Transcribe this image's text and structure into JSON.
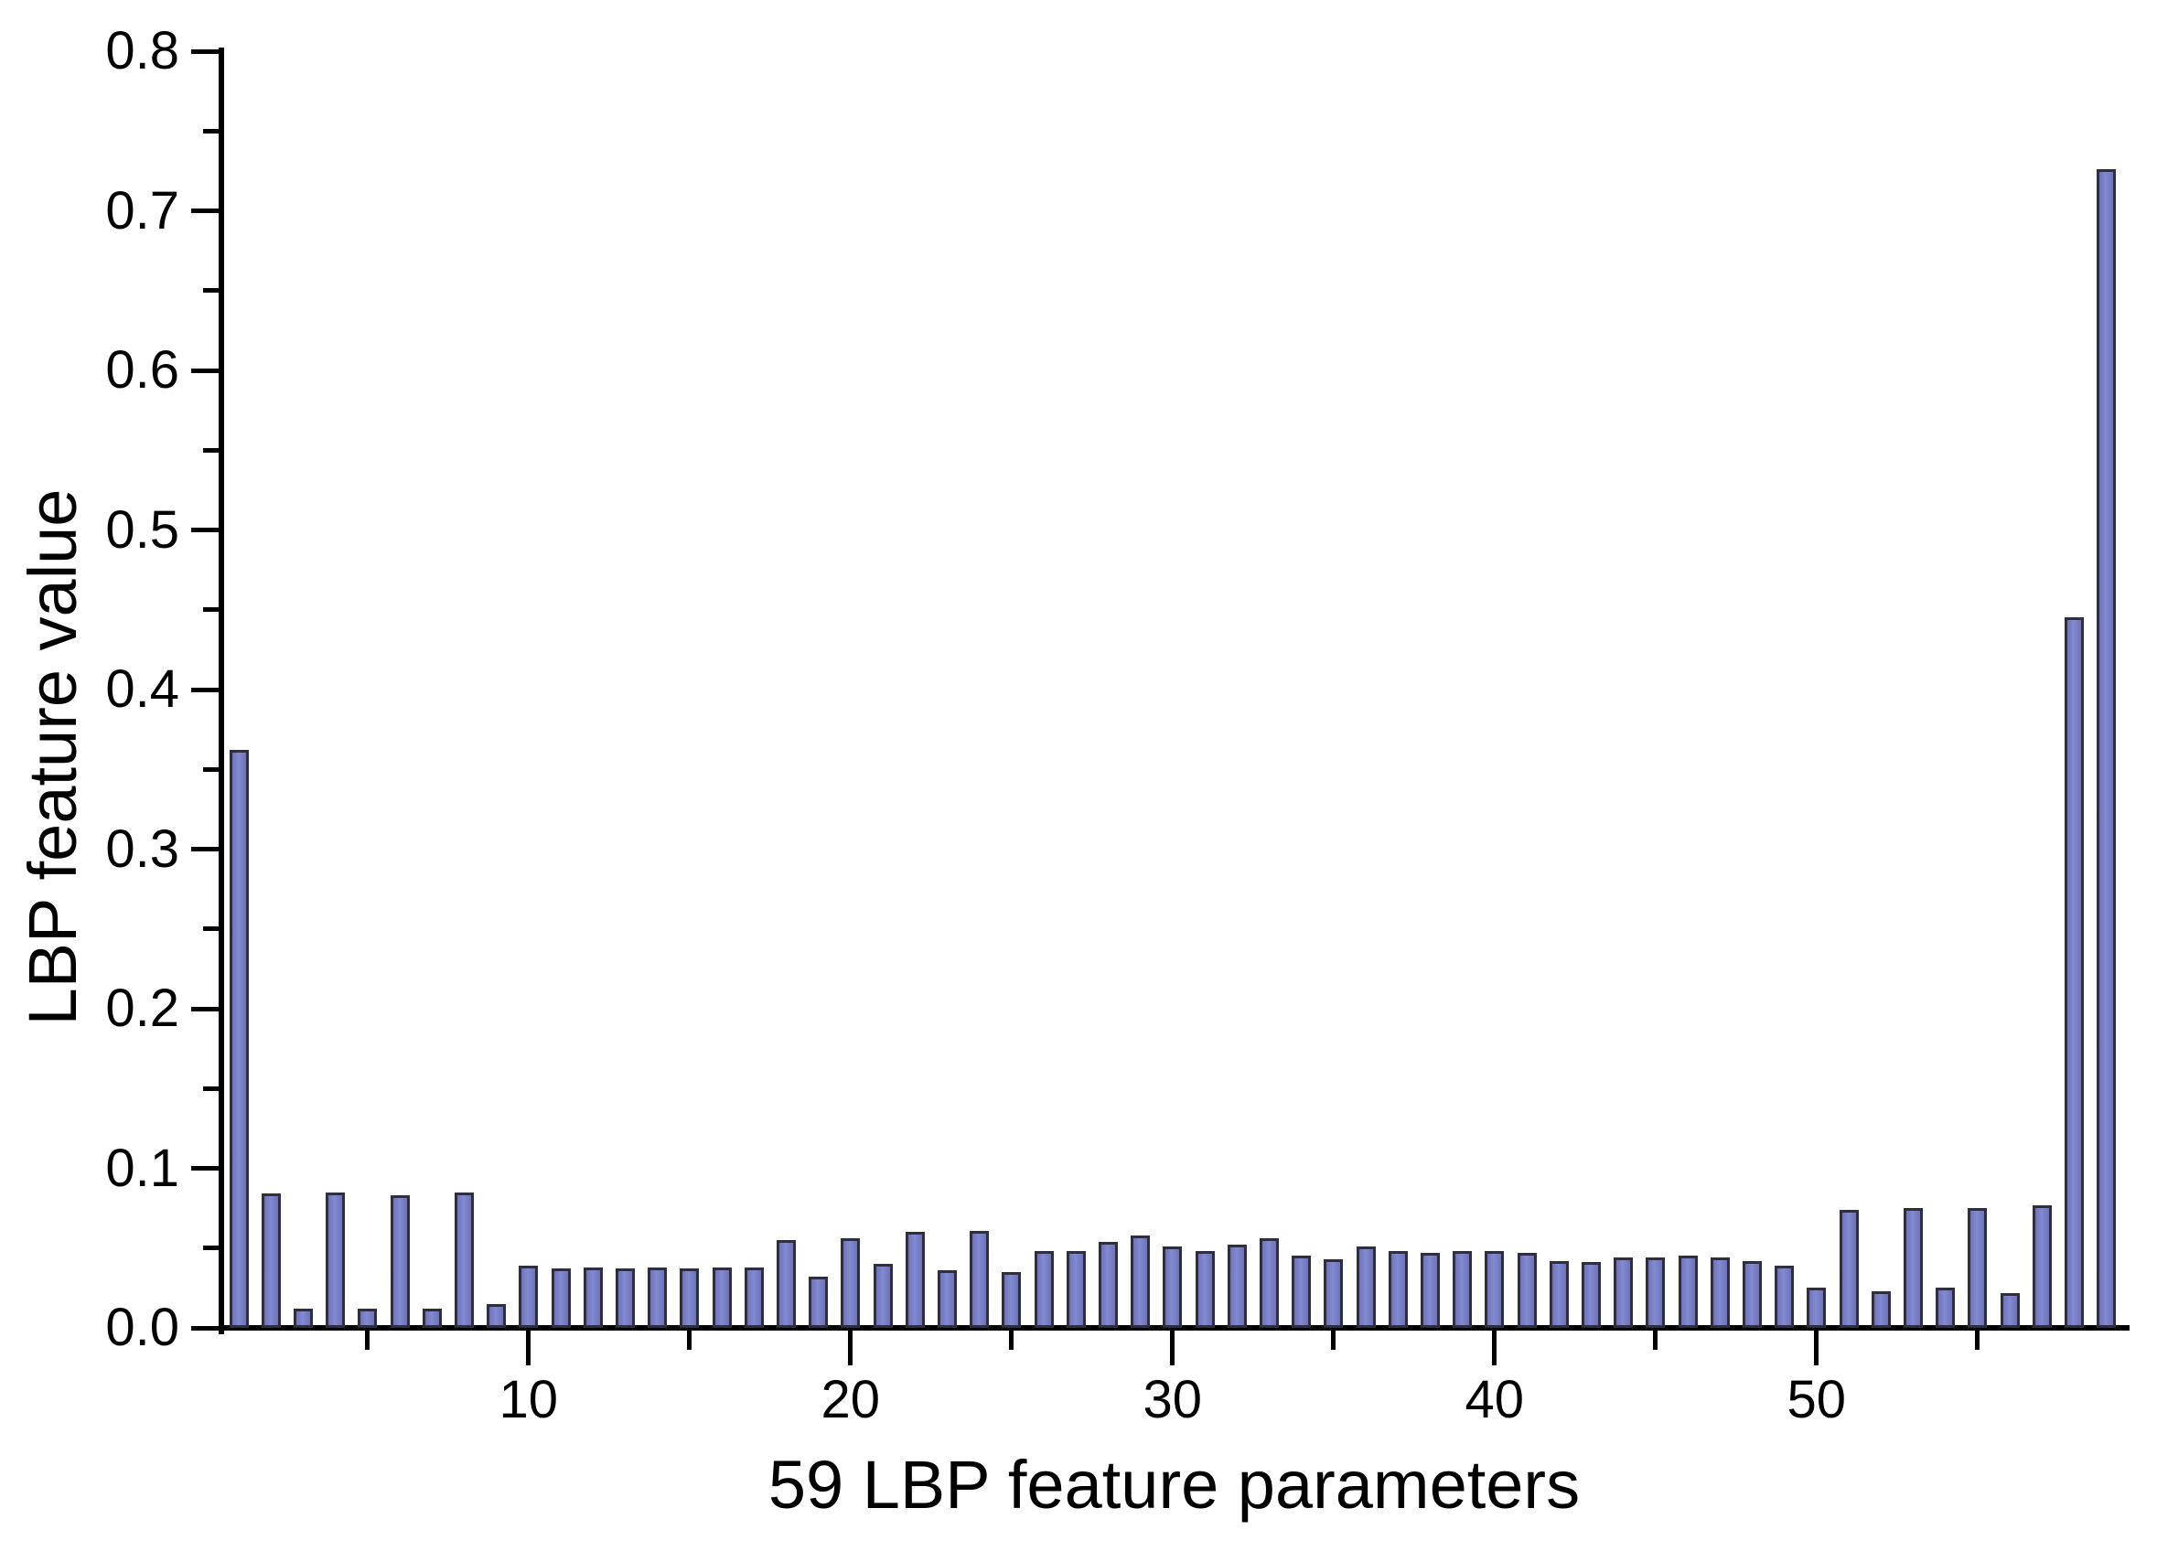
{
  "chart_data": {
    "type": "bar",
    "title": "",
    "xlabel": "59 LBP feature parameters",
    "ylabel": "LBP feature value",
    "n_bars": 59,
    "values": [
      0.362,
      0.084,
      0.012,
      0.085,
      0.012,
      0.083,
      0.012,
      0.085,
      0.015,
      0.039,
      0.037,
      0.038,
      0.037,
      0.038,
      0.037,
      0.038,
      0.038,
      0.055,
      0.032,
      0.056,
      0.04,
      0.06,
      0.036,
      0.061,
      0.035,
      0.048,
      0.048,
      0.054,
      0.058,
      0.051,
      0.048,
      0.052,
      0.056,
      0.045,
      0.043,
      0.051,
      0.048,
      0.047,
      0.048,
      0.048,
      0.047,
      0.042,
      0.041,
      0.044,
      0.044,
      0.045,
      0.044,
      0.042,
      0.039,
      0.025,
      0.074,
      0.023,
      0.075,
      0.025,
      0.075,
      0.022,
      0.077,
      0.445,
      0.726
    ],
    "ylim": [
      0,
      0.8
    ],
    "y_major_step": 0.1,
    "y_minor_step": 0.05,
    "y_tick_labels": [
      "0.0",
      "0.1",
      "0.2",
      "0.3",
      "0.4",
      "0.5",
      "0.6",
      "0.7",
      "0.8"
    ],
    "x_major_ticks": [
      10,
      20,
      30,
      40,
      50
    ],
    "x_minor_ticks": [
      5,
      15,
      25,
      35,
      45,
      55
    ],
    "bar_fill": "#777ec7",
    "bar_edge": "#2e2e3d",
    "axis_color": "#000000",
    "background": "#ffffff",
    "grid": false,
    "legend": null
  }
}
